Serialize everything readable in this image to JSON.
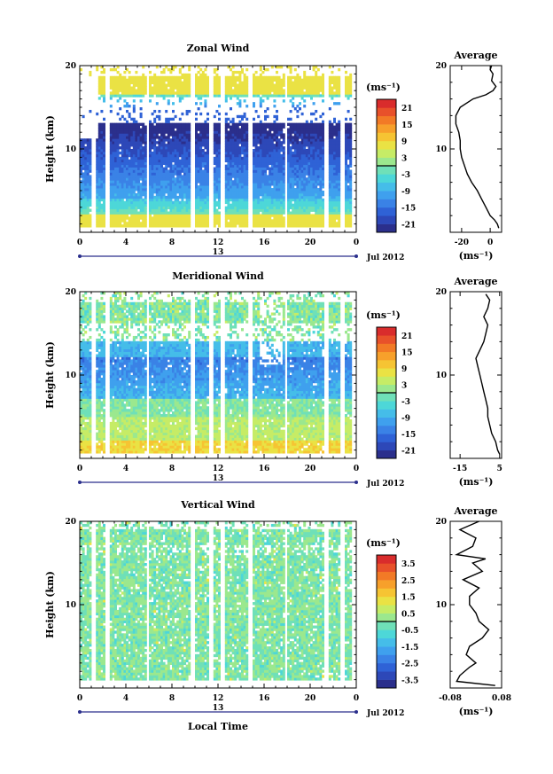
{
  "colors": {
    "scale": [
      "#2b2f8c",
      "#2d48b8",
      "#2f62d6",
      "#3a82e6",
      "#3fa0ee",
      "#45bde9",
      "#4dd7d8",
      "#6fe0b8",
      "#9be88e",
      "#c6ec66",
      "#eae244",
      "#f6c433",
      "#f7a02b",
      "#f27a26",
      "#e8512a",
      "#d92c2c"
    ],
    "text": "#000000",
    "axis_date": "#2b2f8c"
  },
  "chart_data": [
    {
      "type": "heatmap",
      "title": "Zonal Wind",
      "ylabel": "Height (km)",
      "ylim": [
        0,
        20
      ],
      "yticks": [
        "10",
        "20"
      ],
      "xlim": [
        0,
        24
      ],
      "xticks": [
        "0",
        "4",
        "8",
        "12",
        "16",
        "20",
        "0"
      ],
      "date_day": "13",
      "date_month": "Jul 2012",
      "colorbar": {
        "unit": "(ms⁻¹)",
        "min": -24,
        "max": 24,
        "ticks": [
          "21",
          "15",
          "9",
          "3",
          "-3",
          "-9",
          "-15",
          "-21"
        ]
      },
      "profile": {
        "title": "Average",
        "xlim": [
          -28,
          8
        ],
        "xticks": [
          "-20",
          "0"
        ],
        "xlabel": "(ms⁻¹)",
        "yticks": [
          "10",
          "20"
        ],
        "points": [
          [
            6,
            0.5
          ],
          [
            5,
            1
          ],
          [
            3,
            1.5
          ],
          [
            0,
            2
          ],
          [
            -3,
            3
          ],
          [
            -6,
            4
          ],
          [
            -9,
            5
          ],
          [
            -13,
            6
          ],
          [
            -16,
            7
          ],
          [
            -18,
            8
          ],
          [
            -20,
            9
          ],
          [
            -21,
            10
          ],
          [
            -21,
            11
          ],
          [
            -22,
            12
          ],
          [
            -24,
            13
          ],
          [
            -24,
            14
          ],
          [
            -21,
            15
          ],
          [
            -12,
            16
          ],
          [
            -3,
            16.5
          ],
          [
            2,
            17
          ],
          [
            4,
            17.5
          ],
          [
            1,
            18.2
          ],
          [
            2,
            19
          ],
          [
            0,
            19.5
          ],
          [
            1,
            20
          ]
        ]
      }
    },
    {
      "type": "heatmap",
      "title": "Meridional Wind",
      "ylabel": "Height (km)",
      "ylim": [
        0,
        20
      ],
      "yticks": [
        "10",
        "20"
      ],
      "xlim": [
        0,
        24
      ],
      "xticks": [
        "0",
        "4",
        "8",
        "12",
        "16",
        "20",
        "0"
      ],
      "date_day": "13",
      "date_month": "Jul 2012",
      "colorbar": {
        "unit": "(ms⁻¹)",
        "min": -24,
        "max": 24,
        "ticks": [
          "21",
          "15",
          "9",
          "3",
          "-3",
          "-9",
          "-15",
          "-21"
        ]
      },
      "profile": {
        "title": "Average",
        "xlim": [
          -20,
          6
        ],
        "xticks": [
          "-15",
          "5"
        ],
        "xlabel": "(ms⁻¹)",
        "yticks": [
          "10",
          "20"
        ],
        "points": [
          [
            5,
            0.5
          ],
          [
            4,
            1
          ],
          [
            3,
            2
          ],
          [
            1,
            3
          ],
          [
            0,
            4
          ],
          [
            -1,
            5
          ],
          [
            -1,
            6
          ],
          [
            -2,
            7
          ],
          [
            -3,
            8
          ],
          [
            -4,
            9
          ],
          [
            -5,
            10
          ],
          [
            -6,
            11
          ],
          [
            -7,
            12
          ],
          [
            -5,
            13
          ],
          [
            -3,
            14
          ],
          [
            -2,
            15
          ],
          [
            -1,
            16
          ],
          [
            -3,
            17
          ],
          [
            -1,
            18
          ],
          [
            0,
            19
          ],
          [
            -2,
            19.7
          ]
        ]
      }
    },
    {
      "type": "heatmap",
      "title": "Vertical Wind",
      "ylabel": "Height (km)",
      "xlabel": "Local Time",
      "ylim": [
        0,
        20
      ],
      "yticks": [
        "10",
        "20"
      ],
      "xlim": [
        0,
        24
      ],
      "xticks": [
        "0",
        "4",
        "8",
        "12",
        "16",
        "20",
        "0"
      ],
      "date_day": "13",
      "date_month": "Jul 2012",
      "colorbar": {
        "unit": "(ms⁻¹)",
        "min": -4,
        "max": 4,
        "ticks": [
          "3.5",
          "2.5",
          "1.5",
          "0.5",
          "-0.5",
          "-1.5",
          "-2.5",
          "-3.5"
        ]
      },
      "profile": {
        "title": "Average",
        "xlim": [
          -0.08,
          0.08
        ],
        "xticks": [
          "-0.08",
          "0.08"
        ],
        "xlabel": "(ms⁻¹)",
        "yticks": [
          "10",
          "20"
        ],
        "points": [
          [
            0.06,
            0.3
          ],
          [
            -0.06,
            0.8
          ],
          [
            -0.05,
            1.5
          ],
          [
            -0.02,
            2.5
          ],
          [
            0.0,
            3
          ],
          [
            -0.03,
            4
          ],
          [
            -0.02,
            5
          ],
          [
            0.02,
            6
          ],
          [
            0.04,
            7
          ],
          [
            0.01,
            8
          ],
          [
            0.0,
            9
          ],
          [
            -0.02,
            10
          ],
          [
            -0.02,
            11
          ],
          [
            0.01,
            12
          ],
          [
            -0.04,
            13
          ],
          [
            0.02,
            14
          ],
          [
            -0.01,
            15
          ],
          [
            0.03,
            15.5
          ],
          [
            -0.06,
            16
          ],
          [
            -0.01,
            17
          ],
          [
            0.0,
            18
          ],
          [
            -0.05,
            19
          ],
          [
            0.01,
            20
          ]
        ]
      }
    }
  ]
}
